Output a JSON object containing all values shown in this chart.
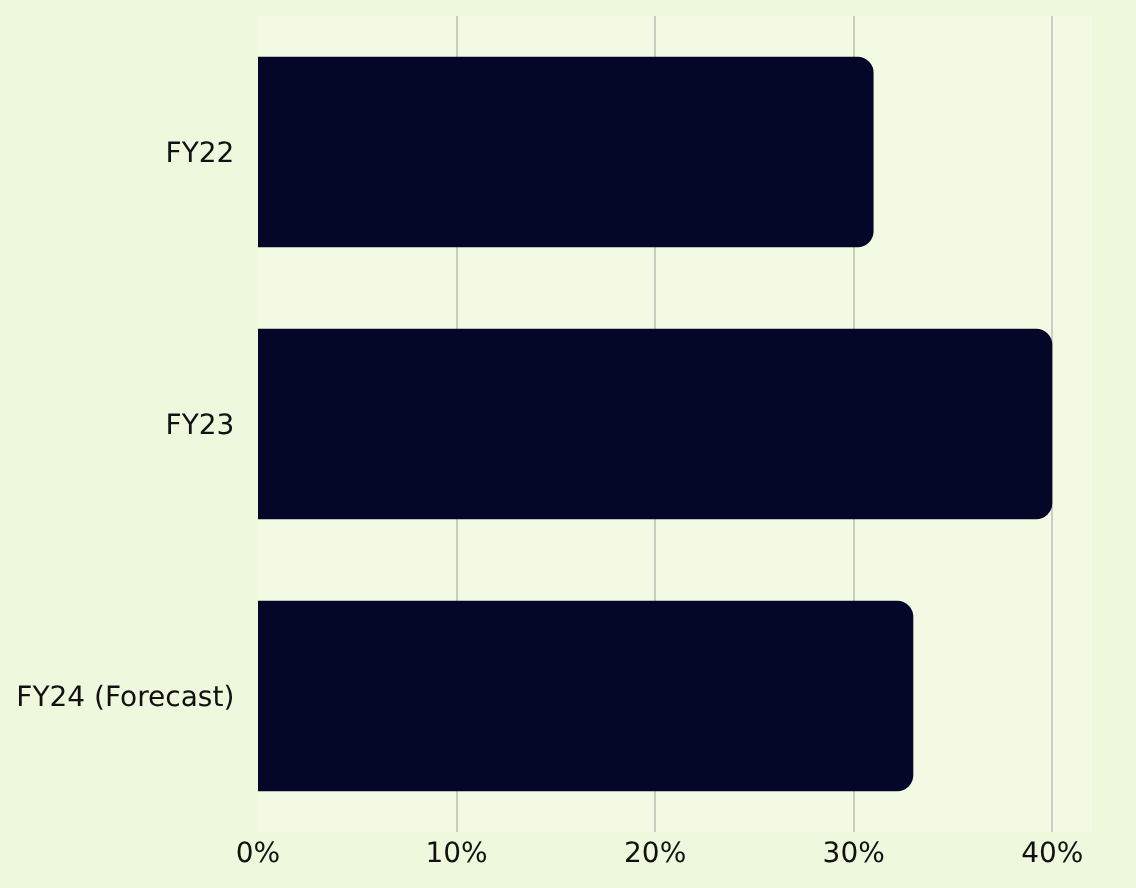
{
  "chart_data": {
    "type": "bar",
    "orientation": "horizontal",
    "categories": [
      "FY22",
      "FY23",
      "FY24 (Forecast)"
    ],
    "values": [
      31,
      40,
      33
    ],
    "color": "#050729",
    "xlim": [
      0,
      42
    ],
    "xticks": [
      {
        "value": 0,
        "label": "0%"
      },
      {
        "value": 10,
        "label": "10%"
      },
      {
        "value": 20,
        "label": "20%"
      },
      {
        "value": 30,
        "label": "30%"
      },
      {
        "value": 40,
        "label": "40%"
      }
    ],
    "grid": "x"
  }
}
